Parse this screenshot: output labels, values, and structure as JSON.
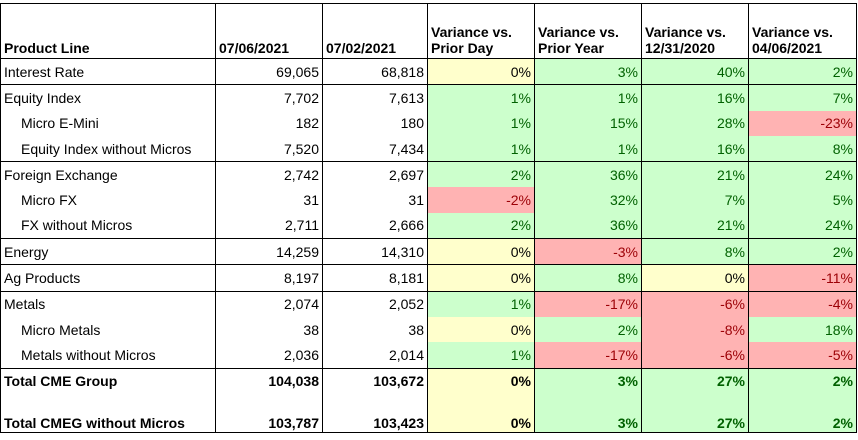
{
  "colors": {
    "green": "#ccffcc",
    "yellow": "#ffffcc",
    "red": "#ffb3b3",
    "text_positive": "#006100",
    "text_negative": "#9c0006",
    "text_neutral": "#000000"
  },
  "table": {
    "headers": [
      "Product Line",
      "07/06/2021",
      "07/02/2021",
      "Variance vs. Prior Day",
      "Variance vs. Prior Year",
      "Variance vs. 12/31/2020",
      "Variance vs. 04/06/2021"
    ],
    "rows": [
      {
        "label": "Interest Rate",
        "indent": false,
        "group_start": true,
        "v1": "69,065",
        "v2": "68,818",
        "var": [
          {
            "t": "0%",
            "c": "yellow"
          },
          {
            "t": "3%",
            "c": "green"
          },
          {
            "t": "40%",
            "c": "green"
          },
          {
            "t": "2%",
            "c": "green"
          }
        ]
      },
      {
        "label": "Equity Index",
        "indent": false,
        "group_start": true,
        "v1": "7,702",
        "v2": "7,613",
        "var": [
          {
            "t": "1%",
            "c": "green"
          },
          {
            "t": "1%",
            "c": "green"
          },
          {
            "t": "16%",
            "c": "green"
          },
          {
            "t": "7%",
            "c": "green"
          }
        ]
      },
      {
        "label": "Micro E-Mini",
        "indent": true,
        "group_start": false,
        "v1": "182",
        "v2": "180",
        "var": [
          {
            "t": "1%",
            "c": "green"
          },
          {
            "t": "15%",
            "c": "green"
          },
          {
            "t": "28%",
            "c": "green"
          },
          {
            "t": "-23%",
            "c": "red"
          }
        ]
      },
      {
        "label": "Equity Index without Micros",
        "indent": true,
        "group_start": false,
        "v1": "7,520",
        "v2": "7,434",
        "var": [
          {
            "t": "1%",
            "c": "green"
          },
          {
            "t": "1%",
            "c": "green"
          },
          {
            "t": "16%",
            "c": "green"
          },
          {
            "t": "8%",
            "c": "green"
          }
        ]
      },
      {
        "label": "Foreign Exchange",
        "indent": false,
        "group_start": true,
        "v1": "2,742",
        "v2": "2,697",
        "var": [
          {
            "t": "2%",
            "c": "green"
          },
          {
            "t": "36%",
            "c": "green"
          },
          {
            "t": "21%",
            "c": "green"
          },
          {
            "t": "24%",
            "c": "green"
          }
        ]
      },
      {
        "label": "Micro FX",
        "indent": true,
        "group_start": false,
        "v1": "31",
        "v2": "31",
        "var": [
          {
            "t": "-2%",
            "c": "red"
          },
          {
            "t": "32%",
            "c": "green"
          },
          {
            "t": "7%",
            "c": "green"
          },
          {
            "t": "5%",
            "c": "green"
          }
        ]
      },
      {
        "label": "FX without Micros",
        "indent": true,
        "group_start": false,
        "v1": "2,711",
        "v2": "2,666",
        "var": [
          {
            "t": "2%",
            "c": "green"
          },
          {
            "t": "36%",
            "c": "green"
          },
          {
            "t": "21%",
            "c": "green"
          },
          {
            "t": "24%",
            "c": "green"
          }
        ]
      },
      {
        "label": "Energy",
        "indent": false,
        "group_start": true,
        "v1": "14,259",
        "v2": "14,310",
        "var": [
          {
            "t": "0%",
            "c": "yellow"
          },
          {
            "t": "-3%",
            "c": "red"
          },
          {
            "t": "8%",
            "c": "green"
          },
          {
            "t": "2%",
            "c": "green"
          }
        ]
      },
      {
        "label": "Ag Products",
        "indent": false,
        "group_start": true,
        "v1": "8,197",
        "v2": "8,181",
        "var": [
          {
            "t": "0%",
            "c": "yellow"
          },
          {
            "t": "8%",
            "c": "green"
          },
          {
            "t": "0%",
            "c": "yellow"
          },
          {
            "t": "-11%",
            "c": "red"
          }
        ]
      },
      {
        "label": "Metals",
        "indent": false,
        "group_start": true,
        "v1": "2,074",
        "v2": "2,052",
        "var": [
          {
            "t": "1%",
            "c": "green"
          },
          {
            "t": "-17%",
            "c": "red"
          },
          {
            "t": "-6%",
            "c": "red"
          },
          {
            "t": "-4%",
            "c": "red"
          }
        ]
      },
      {
        "label": "Micro Metals",
        "indent": true,
        "group_start": false,
        "v1": "38",
        "v2": "38",
        "var": [
          {
            "t": "0%",
            "c": "yellow"
          },
          {
            "t": "2%",
            "c": "green"
          },
          {
            "t": "-8%",
            "c": "red"
          },
          {
            "t": "18%",
            "c": "green"
          }
        ]
      },
      {
        "label": "Metals without Micros",
        "indent": true,
        "group_start": false,
        "v1": "2,036",
        "v2": "2,014",
        "var": [
          {
            "t": "1%",
            "c": "green"
          },
          {
            "t": "-17%",
            "c": "red"
          },
          {
            "t": "-6%",
            "c": "red"
          },
          {
            "t": "-5%",
            "c": "red"
          }
        ]
      },
      {
        "label": "Total CME Group",
        "indent": false,
        "group_start": true,
        "total": 1,
        "v1": "104,038",
        "v2": "103,672",
        "var": [
          {
            "t": "0%",
            "c": "yellow"
          },
          {
            "t": "3%",
            "c": "green"
          },
          {
            "t": "27%",
            "c": "green"
          },
          {
            "t": "2%",
            "c": "green"
          }
        ]
      },
      {
        "label": "Total CMEG without Micros",
        "indent": false,
        "group_start": false,
        "total": 2,
        "v1": "103,787",
        "v2": "103,423",
        "var": [
          {
            "t": "0%",
            "c": "yellow"
          },
          {
            "t": "3%",
            "c": "green"
          },
          {
            "t": "27%",
            "c": "green"
          },
          {
            "t": "2%",
            "c": "green"
          }
        ]
      }
    ]
  }
}
